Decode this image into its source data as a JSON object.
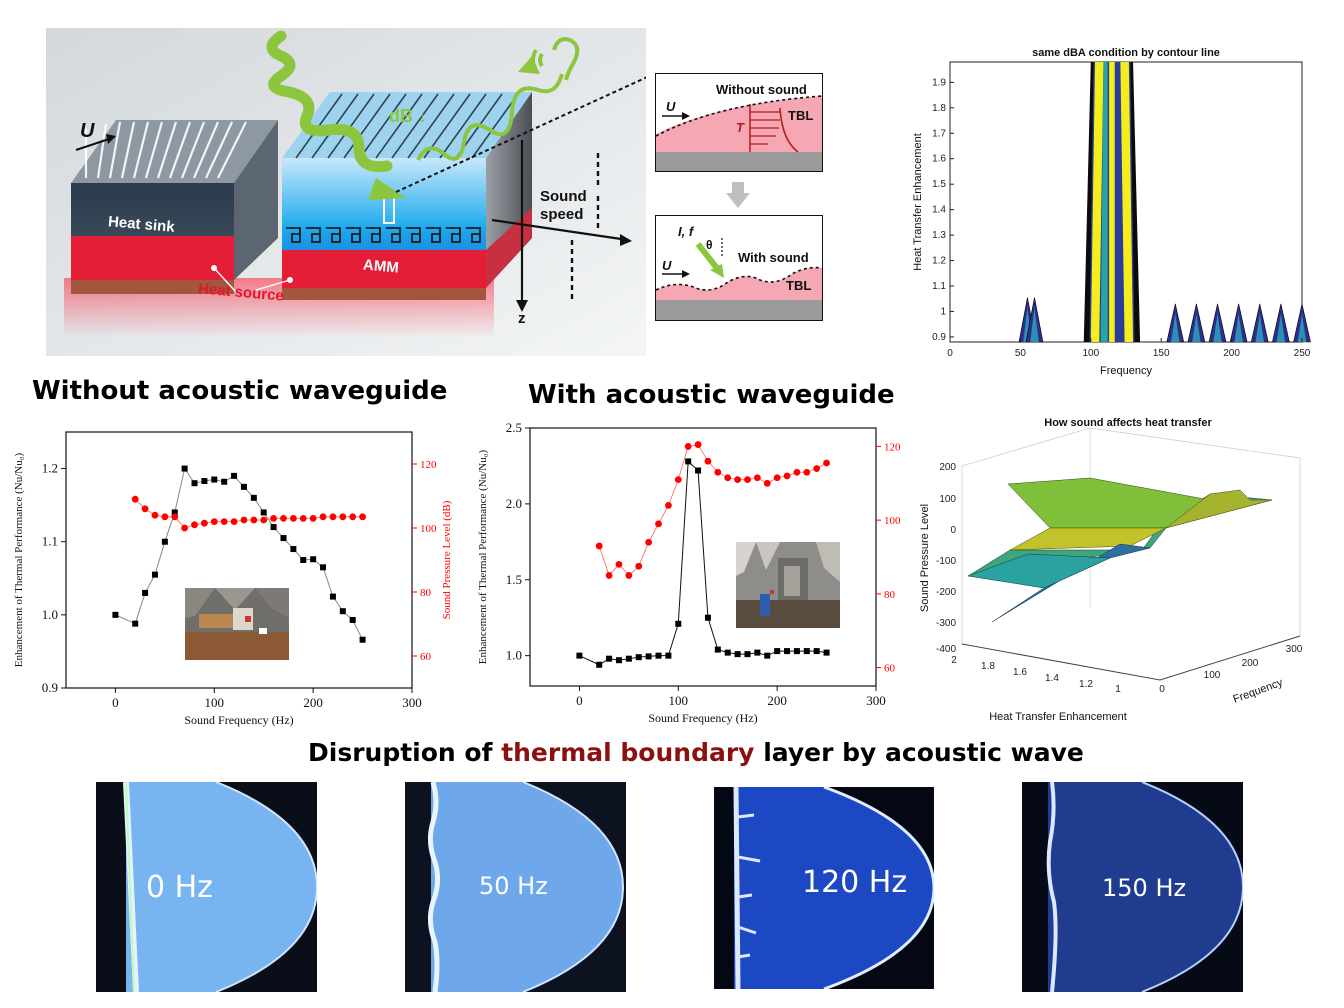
{
  "schematic": {
    "label_U": "U",
    "label_heat_sink": "Heat sink",
    "label_amm": "AMM",
    "label_heat_source": "Heat source",
    "label_db": "dB ↓",
    "label_sound_speed_1": "Sound",
    "label_sound_speed_2": "speed",
    "label_z": "z",
    "inset_top": {
      "title": "Without sound",
      "label_u": "U",
      "label_t": "T",
      "label_tbl": "TBL"
    },
    "inset_bottom": {
      "title": "With sound",
      "label_u": "U",
      "label_if": "I, f",
      "label_theta": "θ",
      "label_tbl": "TBL"
    }
  },
  "titles": {
    "without_waveguide": "Without acoustic waveguide",
    "with_waveguide": "With acoustic waveguide",
    "disruption_prefix": "Disruption of ",
    "disruption_highlight": "thermal boundary",
    "disruption_suffix": " layer by acoustic wave"
  },
  "colors": {
    "highlight": "#8b1010",
    "black_series": "#000000",
    "red_series": "#ff0000"
  },
  "photos": [
    {
      "label": "0 Hz"
    },
    {
      "label": "50 Hz"
    },
    {
      "label": "120 Hz"
    },
    {
      "label": "150 Hz"
    }
  ],
  "chart_data": [
    {
      "id": "contour",
      "type": "heatmap",
      "title": "same dBA condition by contour line",
      "xlabel": "Frequency",
      "ylabel": "Heat Transfer Enhancement",
      "xlim": [
        0,
        250
      ],
      "ylim": [
        0.88,
        1.98
      ],
      "xticks": [
        "0",
        "50",
        "100",
        "150",
        "200",
        "250"
      ],
      "yticks": [
        "0.9",
        "1",
        "1.1",
        "1.2",
        "1.3",
        "1.4",
        "1.5",
        "1.6",
        "1.7",
        "1.8",
        "1.9"
      ],
      "peak_band": [
        95,
        135
      ],
      "small_peaks_x": [
        55,
        60,
        160,
        175,
        190,
        205,
        220,
        235,
        250
      ]
    },
    {
      "id": "without",
      "type": "scatter",
      "xlabel": "Sound Frequency (Hz)",
      "ylabel": "Enhancement of Thermal Performance (Nu/Nu₀)",
      "ylabel_right": "Sound Pressure Level (dB)",
      "xlim": [
        -50,
        300
      ],
      "ylim": [
        0.9,
        1.25
      ],
      "ylim_right": [
        50,
        130
      ],
      "xticks": [
        "0",
        "100",
        "200",
        "300"
      ],
      "yticks": [
        "0.9",
        "1.0",
        "1.1",
        "1.2"
      ],
      "yticks_right": [
        "60",
        "80",
        "100",
        "120"
      ],
      "series": [
        {
          "name": "Enhancement",
          "axis": "left",
          "x": [
            0,
            20,
            30,
            40,
            50,
            60,
            70,
            80,
            90,
            100,
            110,
            120,
            130,
            140,
            150,
            160,
            170,
            180,
            190,
            200,
            210,
            220,
            230,
            240,
            250
          ],
          "y": [
            1.0,
            0.988,
            1.03,
            1.055,
            1.1,
            1.14,
            1.2,
            1.18,
            1.183,
            1.185,
            1.182,
            1.19,
            1.175,
            1.16,
            1.14,
            1.12,
            1.105,
            1.09,
            1.075,
            1.076,
            1.065,
            1.025,
            1.005,
            0.993,
            0.966
          ]
        },
        {
          "name": "Sound Pressure Level",
          "axis": "right",
          "x": [
            20,
            30,
            40,
            50,
            60,
            70,
            80,
            90,
            100,
            110,
            120,
            130,
            140,
            150,
            160,
            170,
            180,
            190,
            200,
            210,
            220,
            230,
            240,
            250
          ],
          "y": [
            109,
            106,
            104,
            103.5,
            103.5,
            100,
            101,
            101.5,
            102,
            102,
            102,
            102.5,
            102.5,
            102.5,
            103,
            103,
            103,
            103,
            103,
            103.5,
            103.5,
            103.5,
            103.5,
            103.5
          ]
        }
      ]
    },
    {
      "id": "with",
      "type": "scatter",
      "xlabel": "Sound Frequency (Hz)",
      "ylabel": "Enhancement of Thermal Performance (Nu/Nu₀)",
      "xlim": [
        -50,
        300
      ],
      "ylim": [
        0.8,
        2.5
      ],
      "ylim_right": [
        55,
        125
      ],
      "xticks": [
        "0",
        "100",
        "200",
        "300"
      ],
      "yticks": [
        "1.0",
        "1.5",
        "2.0",
        "2.5"
      ],
      "yticks_right": [
        "60",
        "80",
        "100",
        "120"
      ],
      "series": [
        {
          "name": "Enhancement",
          "axis": "left",
          "x": [
            0,
            20,
            30,
            40,
            50,
            60,
            70,
            80,
            90,
            100,
            110,
            120,
            130,
            140,
            150,
            160,
            170,
            180,
            190,
            200,
            210,
            220,
            230,
            240,
            250
          ],
          "y": [
            1.0,
            0.94,
            0.98,
            0.97,
            0.98,
            0.99,
            0.995,
            1.0,
            1.0,
            1.21,
            2.28,
            2.22,
            1.25,
            1.04,
            1.02,
            1.01,
            1.01,
            1.02,
            1.0,
            1.03,
            1.03,
            1.03,
            1.03,
            1.03,
            1.02
          ]
        },
        {
          "name": "Sound Pressure Level",
          "axis": "right",
          "x": [
            20,
            30,
            40,
            50,
            60,
            70,
            80,
            90,
            100,
            110,
            120,
            130,
            140,
            150,
            160,
            170,
            180,
            190,
            200,
            210,
            220,
            230,
            240,
            250
          ],
          "y": [
            93,
            85,
            88,
            85,
            87.5,
            94,
            99,
            104,
            111,
            120,
            120.5,
            116,
            113,
            111.5,
            111,
            111,
            111.5,
            110,
            111.5,
            112,
            113,
            113,
            114,
            115.5
          ]
        }
      ]
    },
    {
      "id": "surface",
      "type": "area",
      "title": "How sound affects heat transfer",
      "xlabel": "Frequency",
      "ylabel": "Heat Transfer Enhancement",
      "zlabel": "Sound Pressure Level",
      "zticks": [
        "200",
        "100",
        "0",
        "-100",
        "-200",
        "-300",
        "-400"
      ],
      "yticks": [
        "2",
        "1.8",
        "1.6",
        "1.4",
        "1.2",
        "1"
      ],
      "xticks": [
        "0",
        "100",
        "200",
        "300"
      ]
    }
  ]
}
